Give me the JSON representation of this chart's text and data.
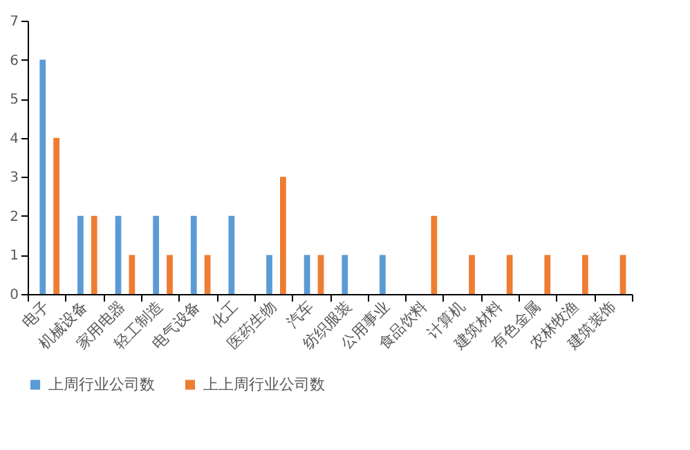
{
  "chart_data": {
    "type": "bar",
    "categories": [
      "电子",
      "机械设备",
      "家用电器",
      "轻工制造",
      "电气设备",
      "化工",
      "医药生物",
      "汽车",
      "纺织服装",
      "公用事业",
      "食品饮料",
      "计算机",
      "建筑材料",
      "有色金属",
      "农林牧渔",
      "建筑装饰"
    ],
    "series": [
      {
        "name": "上周行业公司数",
        "color": "#5b9bd5",
        "values": [
          6,
          2,
          2,
          2,
          2,
          2,
          1,
          1,
          1,
          1,
          null,
          null,
          null,
          null,
          null,
          null
        ]
      },
      {
        "name": "上上周行业公司数",
        "color": "#ed7d31",
        "values": [
          4,
          2,
          1,
          1,
          1,
          null,
          3,
          1,
          null,
          null,
          2,
          1,
          1,
          1,
          1,
          1
        ]
      }
    ],
    "ylim": [
      0,
      7
    ],
    "yticks": [
      0,
      1,
      2,
      3,
      4,
      5,
      6,
      7
    ],
    "grid": false,
    "legend": "bottom"
  }
}
